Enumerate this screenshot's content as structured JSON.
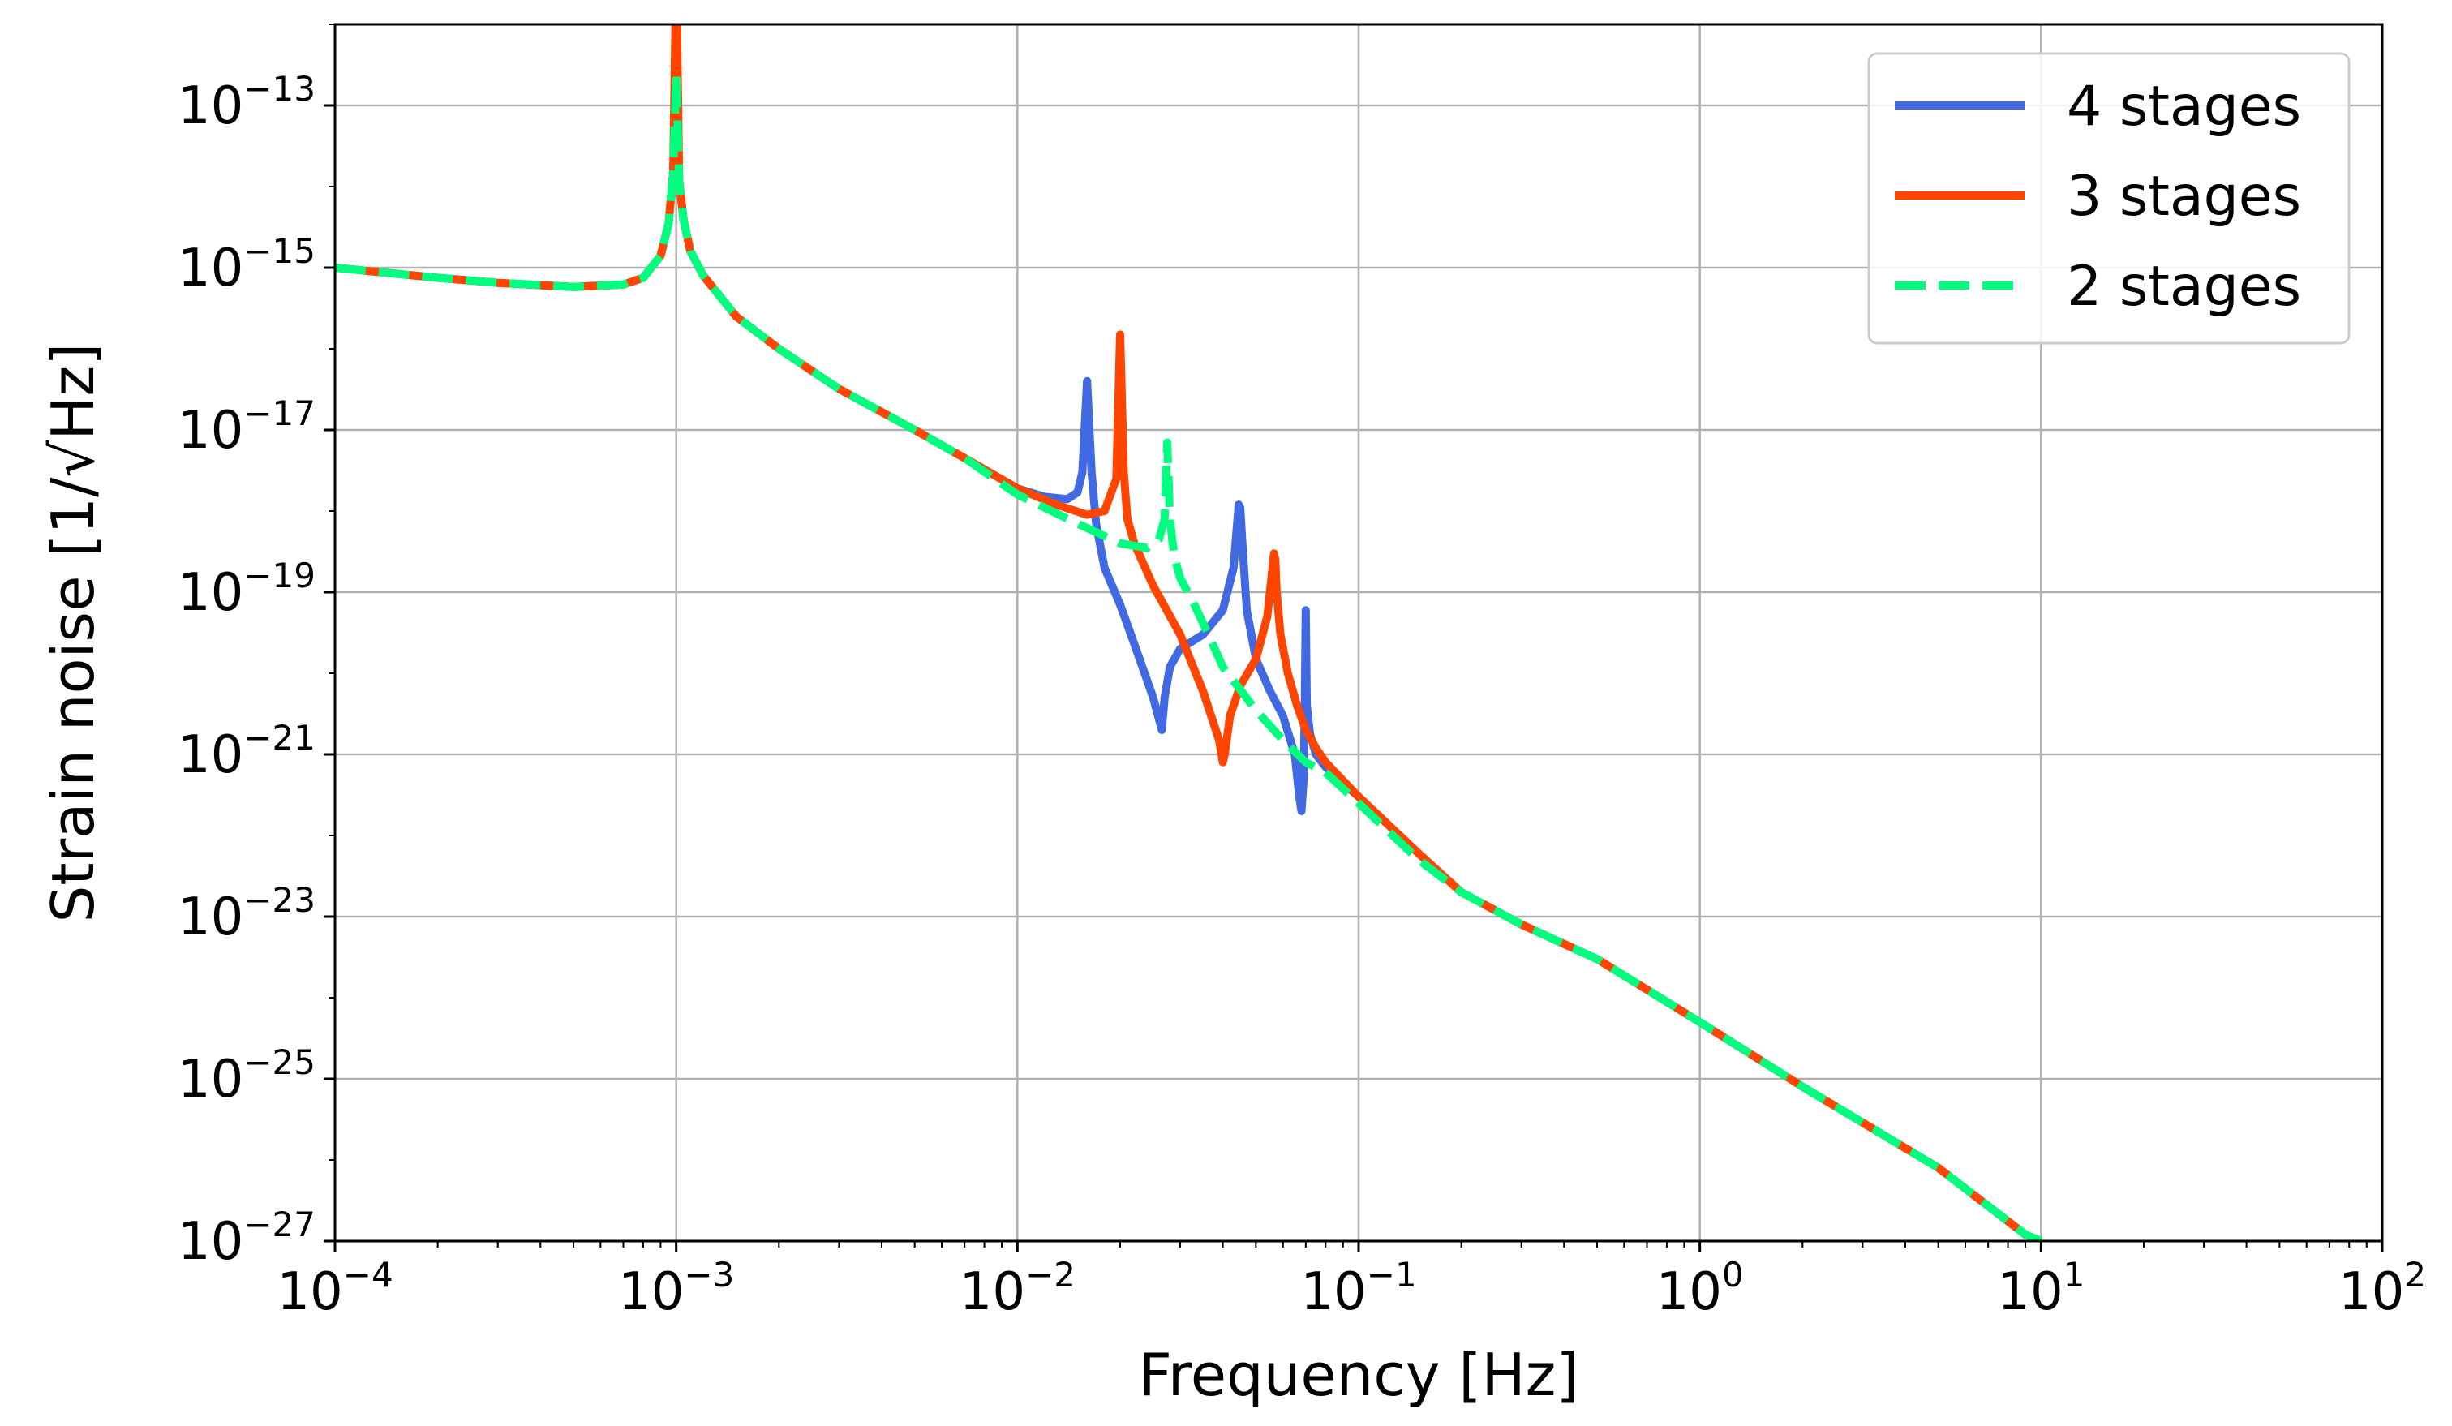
{
  "chart_data": {
    "type": "line",
    "xscale": "log",
    "yscale": "log",
    "xlim": [
      0.0001,
      100
    ],
    "ylim": [
      1e-27,
      1e-12
    ],
    "xlabel": "Frequency [Hz]",
    "ylabel": "Strain noise [1/√Hz]",
    "grid": true,
    "legend_position": "top-right",
    "x_ticks": [
      {
        "value": 0.0001,
        "base": "10",
        "exp": "−4"
      },
      {
        "value": 0.001,
        "base": "10",
        "exp": "−3"
      },
      {
        "value": 0.01,
        "base": "10",
        "exp": "−2"
      },
      {
        "value": 0.1,
        "base": "10",
        "exp": "−1"
      },
      {
        "value": 1,
        "base": "10",
        "exp": "0"
      },
      {
        "value": 10,
        "base": "10",
        "exp": "1"
      },
      {
        "value": 100,
        "base": "10",
        "exp": "2"
      }
    ],
    "y_ticks": [
      {
        "value": 1e-13,
        "base": "10",
        "exp": "−13"
      },
      {
        "value": 1e-15,
        "base": "10",
        "exp": "−15"
      },
      {
        "value": 1e-17,
        "base": "10",
        "exp": "−17"
      },
      {
        "value": 1e-19,
        "base": "10",
        "exp": "−19"
      },
      {
        "value": 1e-21,
        "base": "10",
        "exp": "−21"
      },
      {
        "value": 1e-23,
        "base": "10",
        "exp": "−23"
      },
      {
        "value": 1e-25,
        "base": "10",
        "exp": "−25"
      },
      {
        "value": 1e-27,
        "base": "10",
        "exp": "−27"
      }
    ],
    "series": [
      {
        "name": "4 stages",
        "color": "#4169E1",
        "dash": "solid",
        "x": [
          0.0001,
          0.0002,
          0.0003,
          0.0005,
          0.0007,
          0.0008,
          0.0009,
          0.00095,
          0.00098,
          0.001,
          0.00102,
          0.00105,
          0.0011,
          0.0012,
          0.0015,
          0.002,
          0.003,
          0.005,
          0.007,
          0.01,
          0.012,
          0.014,
          0.015,
          0.0155,
          0.016,
          0.0165,
          0.017,
          0.018,
          0.02,
          0.022,
          0.025,
          0.0265,
          0.027,
          0.028,
          0.03,
          0.035,
          0.04,
          0.043,
          0.0445,
          0.045,
          0.0455,
          0.047,
          0.05,
          0.055,
          0.06,
          0.065,
          0.067,
          0.068,
          0.069,
          0.0695,
          0.07,
          0.0705,
          0.072,
          0.075,
          0.08,
          0.1,
          0.15,
          0.2,
          0.3,
          0.5,
          1,
          2,
          5,
          9,
          10
        ],
        "y": [
          1e-15,
          7.5e-16,
          6.5e-16,
          5.8e-16,
          6.2e-16,
          7.5e-16,
          1.4e-15,
          3.5e-15,
          1.5e-14,
          2e-13,
          1.2e-14,
          4e-15,
          1.6e-15,
          8e-16,
          2.5e-16,
          1e-16,
          3.2e-17,
          1e-17,
          4.5e-18,
          1.9e-18,
          1.5e-18,
          1.4e-18,
          1.7e-18,
          3e-18,
          4e-17,
          3e-18,
          7e-19,
          2e-19,
          7e-20,
          2.3e-20,
          5e-21,
          2e-21,
          5e-21,
          1.2e-20,
          2e-20,
          3e-20,
          6e-20,
          2e-19,
          1.2e-18,
          1.1e-18,
          5e-19,
          6e-20,
          1.5e-20,
          6e-21,
          3e-21,
          1e-21,
          3e-22,
          2e-22,
          5e-22,
          3e-21,
          6e-20,
          4e-21,
          1.8e-21,
          1e-21,
          7e-22,
          3e-22,
          6e-23,
          2e-23,
          8e-24,
          3e-24,
          5e-25,
          8e-26,
          8e-27,
          1.2e-27,
          1e-27
        ]
      },
      {
        "name": "3 stages",
        "color": "#FF4500",
        "dash": "solid",
        "x": [
          0.0001,
          0.0002,
          0.0003,
          0.0005,
          0.0007,
          0.0008,
          0.0009,
          0.00095,
          0.00098,
          0.001,
          0.00102,
          0.00105,
          0.0011,
          0.0012,
          0.0015,
          0.002,
          0.003,
          0.005,
          0.007,
          0.01,
          0.013,
          0.016,
          0.018,
          0.0195,
          0.02,
          0.0205,
          0.021,
          0.022,
          0.025,
          0.03,
          0.035,
          0.039,
          0.04,
          0.0405,
          0.042,
          0.045,
          0.05,
          0.054,
          0.0565,
          0.057,
          0.0575,
          0.059,
          0.062,
          0.066,
          0.07,
          0.075,
          0.08,
          0.1,
          0.15,
          0.2,
          0.3,
          0.5,
          1,
          2,
          5,
          9,
          10
        ],
        "y": [
          1e-15,
          7.5e-16,
          6.5e-16,
          5.8e-16,
          6.2e-16,
          7.5e-16,
          1.4e-15,
          3.5e-15,
          1.5e-14,
          5e-12,
          1.2e-14,
          4e-15,
          1.6e-15,
          8e-16,
          2.5e-16,
          1e-16,
          3.2e-17,
          1e-17,
          4.5e-18,
          1.9e-18,
          1.2e-18,
          9e-19,
          1e-18,
          2.5e-18,
          1.5e-16,
          3e-18,
          8e-19,
          4e-19,
          1.2e-19,
          3e-20,
          6e-21,
          1.5e-21,
          8e-22,
          1e-21,
          3e-21,
          7e-21,
          1.5e-20,
          5e-20,
          3e-19,
          2.5e-19,
          1e-19,
          3e-20,
          1e-20,
          4e-21,
          2e-21,
          1.2e-21,
          8e-22,
          3e-22,
          6e-23,
          2e-23,
          8e-24,
          3e-24,
          5e-25,
          8e-26,
          8e-27,
          1.2e-27,
          1e-27
        ]
      },
      {
        "name": "2 stages",
        "color": "#00FF7F",
        "dash": "dashed",
        "x": [
          0.0001,
          0.0002,
          0.0003,
          0.0005,
          0.0007,
          0.0008,
          0.0009,
          0.00095,
          0.00098,
          0.001,
          0.00102,
          0.00105,
          0.0011,
          0.0012,
          0.0015,
          0.002,
          0.003,
          0.005,
          0.007,
          0.01,
          0.015,
          0.02,
          0.024,
          0.026,
          0.027,
          0.0275,
          0.028,
          0.0285,
          0.029,
          0.03,
          0.033,
          0.037,
          0.04,
          0.05,
          0.06,
          0.07,
          0.08,
          0.1,
          0.15,
          0.2,
          0.3,
          0.5,
          1,
          2,
          5,
          9,
          10
        ],
        "y": [
          1e-15,
          7.5e-16,
          6.5e-16,
          5.8e-16,
          6.2e-16,
          7.5e-16,
          1.4e-15,
          3.5e-15,
          1.5e-14,
          2.5e-13,
          1.2e-14,
          4e-15,
          1.6e-15,
          8e-16,
          2.5e-16,
          1e-16,
          3.2e-17,
          1e-17,
          4.5e-18,
          1.6e-18,
          7e-19,
          4e-19,
          3.5e-19,
          4.5e-19,
          8e-19,
          7e-18,
          8e-19,
          4e-19,
          2.5e-19,
          1.5e-19,
          7e-20,
          2.5e-20,
          1.2e-20,
          3.5e-21,
          1.5e-21,
          8e-22,
          6e-22,
          2.5e-22,
          5e-23,
          2e-23,
          8e-24,
          3e-24,
          5e-25,
          8e-26,
          8e-27,
          1.2e-27,
          1e-27
        ]
      }
    ]
  }
}
